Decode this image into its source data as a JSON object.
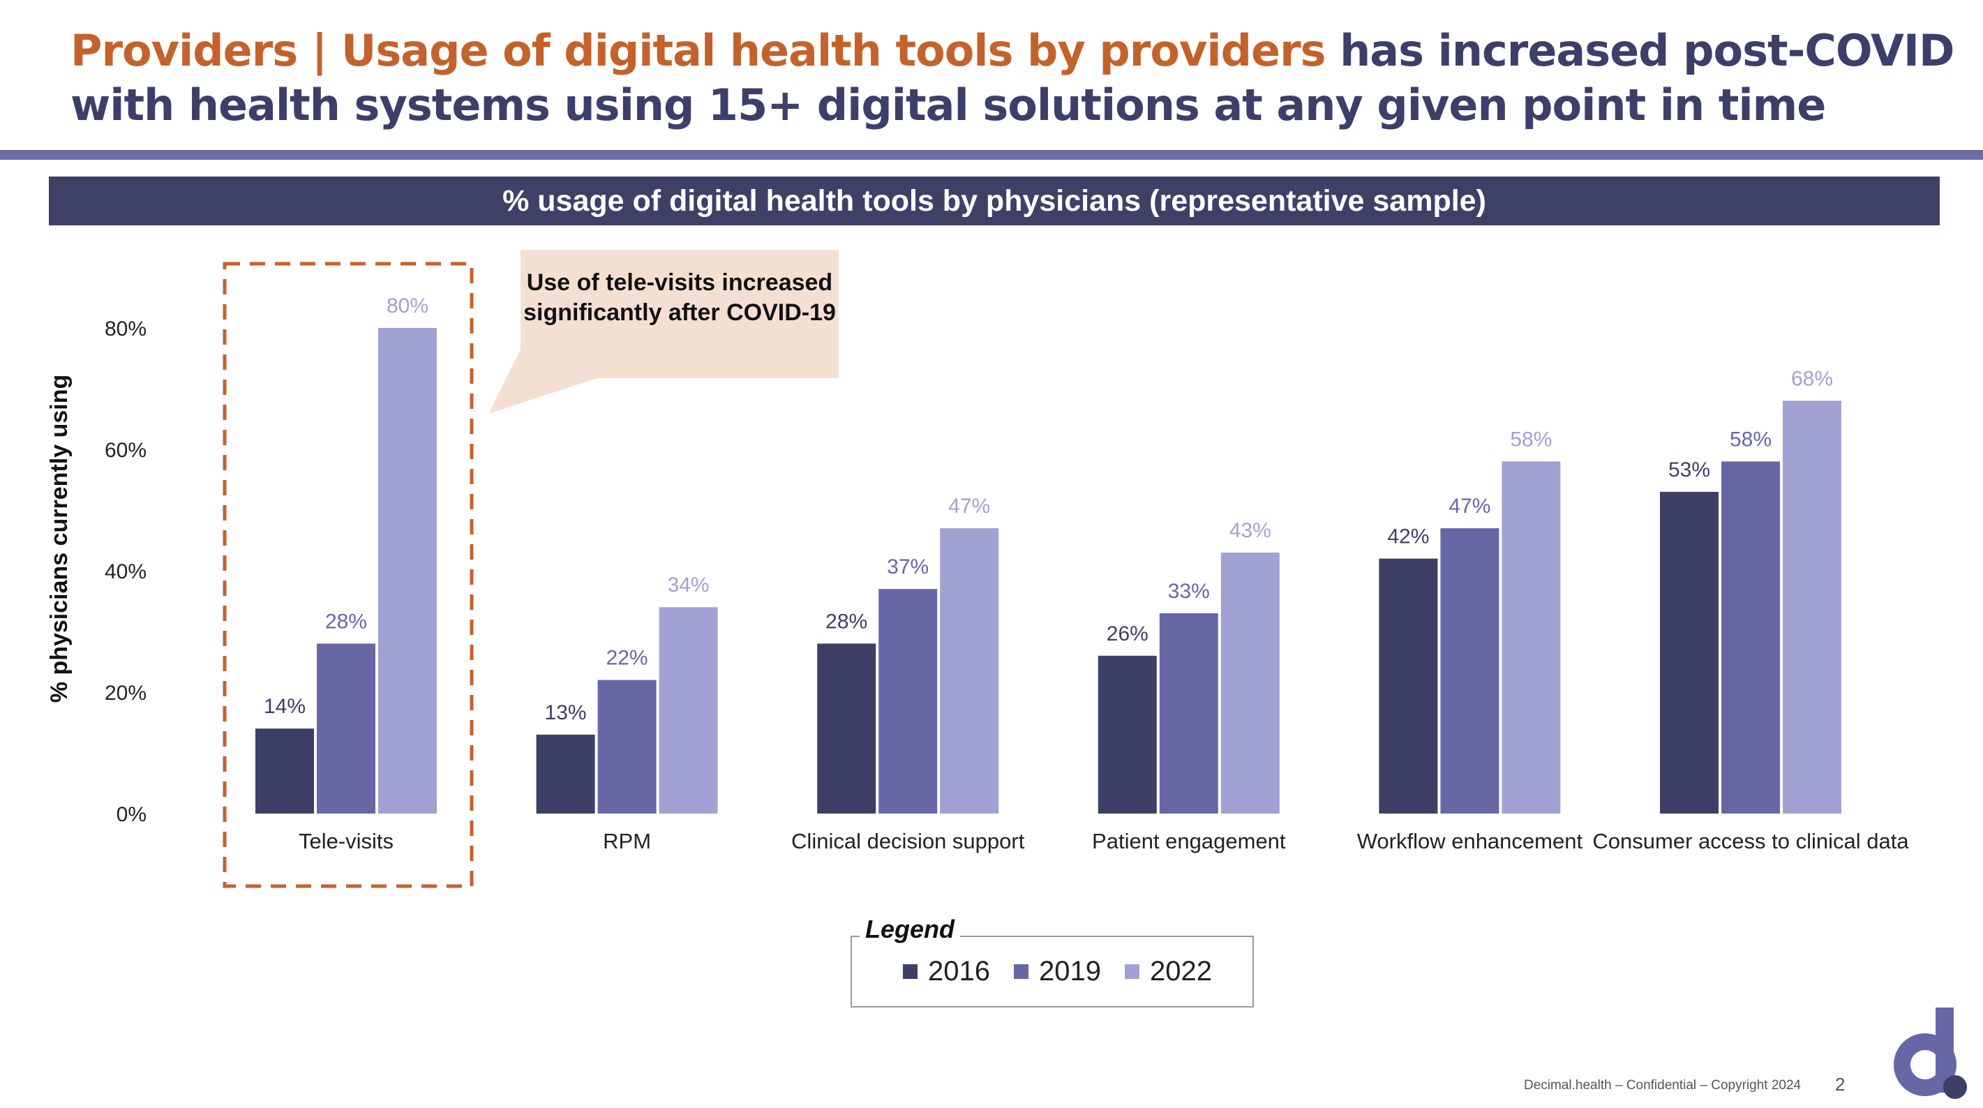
{
  "header": {
    "title_accent": "Providers | Usage of digital health tools by providers",
    "title_rest": " has increased post-COVID with health systems using 15+ digital solutions at any given point in time"
  },
  "banner": {
    "text": "% usage of digital health tools by physicians (representative sample)"
  },
  "callout": {
    "text": "Use of tele-visits increased significantly after COVID-19"
  },
  "legend": {
    "title": "Legend",
    "items": [
      {
        "label": "2016",
        "color": "#3d3f66"
      },
      {
        "label": "2019",
        "color": "#6767a6"
      },
      {
        "label": "2022",
        "color": "#a1a1d3"
      }
    ]
  },
  "footer": {
    "text": "Decimal.health – Confidential – Copyright 2024",
    "page": "2"
  },
  "colors": {
    "accent": "#c4622c",
    "navy": "#3d3f6a",
    "rule": "#6b6ba9",
    "highlight": "#c4622c"
  },
  "chart_data": {
    "type": "bar",
    "title": "% usage of digital health tools by physicians (representative sample)",
    "xlabel": "",
    "ylabel": "% physicians currently using",
    "ylim": [
      0,
      80
    ],
    "yticks": [
      "0%",
      "20%",
      "40%",
      "60%",
      "80%"
    ],
    "ytick_values": [
      0,
      20,
      40,
      60,
      80
    ],
    "grid": false,
    "legend_position": "bottom-center",
    "highlighted_category": "Tele-visits",
    "categories": [
      "Tele-visits",
      "RPM",
      "Clinical decision support",
      "Patient engagement",
      "Workflow enhancement",
      "Consumer access to clinical data"
    ],
    "series": [
      {
        "name": "2016",
        "values": [
          14,
          13,
          28,
          26,
          42,
          53
        ],
        "color": "#3d3f66",
        "label_color": "#3d3f66"
      },
      {
        "name": "2019",
        "values": [
          28,
          22,
          37,
          33,
          47,
          58
        ],
        "color": "#6767a6",
        "label_color": "#6767a6"
      },
      {
        "name": "2022",
        "values": [
          80,
          34,
          47,
          43,
          58,
          68
        ],
        "color": "#a1a1d3",
        "label_color": "#a1a1d3"
      }
    ]
  }
}
